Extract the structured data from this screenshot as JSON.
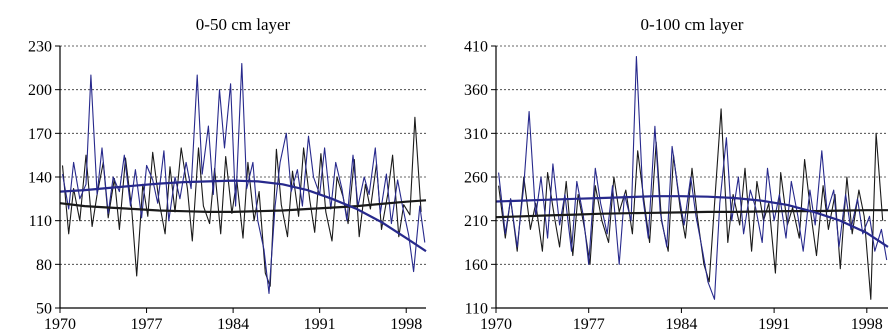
{
  "colors": {
    "series_a": "#1a1a1a",
    "series_b": "#27298c",
    "grid": "#333333",
    "axis": "#000000"
  },
  "chart_data": [
    {
      "type": "line",
      "title": "0-50 cm layer",
      "xlabel": "",
      "ylabel": "",
      "xlim": [
        1970,
        1999.6
      ],
      "ylim": [
        50,
        230
      ],
      "xticks": [
        1970,
        1977,
        1984,
        1991,
        1998
      ],
      "yticks": [
        50,
        80,
        110,
        140,
        170,
        200,
        230
      ],
      "grid": "horizontal-dotted",
      "legend": "none",
      "series": [
        {
          "color": "#1a1a1a",
          "kind": "raw",
          "x": [
            1970.2,
            1970.7,
            1971.1,
            1971.6,
            1972.1,
            1972.6,
            1973.0,
            1973.5,
            1973.9,
            1974.4,
            1974.8,
            1975.3,
            1975.8,
            1976.2,
            1976.7,
            1977.1,
            1977.5,
            1978.0,
            1978.5,
            1978.9,
            1979.3,
            1979.8,
            1980.3,
            1980.7,
            1981.2,
            1981.6,
            1982.1,
            1982.5,
            1983.0,
            1983.4,
            1983.9,
            1984.3,
            1984.8,
            1985.2,
            1985.7,
            1986.1,
            1986.6,
            1987.0,
            1987.5,
            1987.9,
            1988.4,
            1988.8,
            1989.3,
            1989.7,
            1990.2,
            1990.6,
            1991.1,
            1991.5,
            1992.0,
            1992.4,
            1992.9,
            1993.3,
            1993.8,
            1994.2,
            1994.7,
            1995.1,
            1995.6,
            1996.0,
            1996.5,
            1996.9,
            1997.4,
            1997.8,
            1998.3,
            1998.7,
            1999.2
          ],
          "y": [
            148,
            101,
            132,
            110,
            155,
            106,
            128,
            150,
            112,
            139,
            104,
            153,
            118,
            72,
            135,
            113,
            157,
            124,
            101,
            147,
            116,
            160,
            132,
            96,
            160,
            120,
            108,
            146,
            101,
            154,
            115,
            138,
            98,
            150,
            110,
            130,
            74,
            65,
            159,
            121,
            99,
            144,
            113,
            160,
            124,
            102,
            156,
            116,
            96,
            140,
            126,
            108,
            152,
            99,
            135,
            118,
            149,
            104,
            128,
            155,
            99,
            121,
            114,
            181,
            116
          ]
        },
        {
          "color": "#27298c",
          "kind": "raw",
          "x": [
            1970.2,
            1970.7,
            1971.1,
            1971.6,
            1972.1,
            1972.5,
            1973.0,
            1973.4,
            1973.9,
            1974.3,
            1974.8,
            1975.2,
            1975.7,
            1976.1,
            1976.6,
            1977.0,
            1977.5,
            1977.9,
            1978.4,
            1978.8,
            1979.3,
            1979.7,
            1980.2,
            1980.6,
            1981.1,
            1981.5,
            1982.0,
            1982.4,
            1982.9,
            1983.3,
            1983.8,
            1984.2,
            1984.7,
            1985.1,
            1985.6,
            1986.0,
            1986.5,
            1986.9,
            1987.4,
            1987.8,
            1988.3,
            1988.7,
            1989.2,
            1989.6,
            1990.1,
            1990.5,
            1991.0,
            1991.4,
            1991.9,
            1992.3,
            1992.8,
            1993.2,
            1993.7,
            1994.1,
            1994.6,
            1995.0,
            1995.5,
            1995.9,
            1996.4,
            1996.8,
            1997.3,
            1997.7,
            1998.2,
            1998.6,
            1999.1,
            1999.5
          ],
          "y": [
            142,
            118,
            150,
            125,
            135,
            210,
            128,
            160,
            115,
            140,
            130,
            155,
            120,
            145,
            112,
            148,
            138,
            122,
            158,
            110,
            140,
            125,
            150,
            132,
            210,
            142,
            175,
            128,
            200,
            160,
            204,
            120,
            218,
            132,
            150,
            110,
            90,
            60,
            120,
            150,
            170,
            130,
            145,
            120,
            168,
            140,
            128,
            160,
            118,
            150,
            132,
            110,
            155,
            120,
            140,
            128,
            160,
            115,
            142,
            108,
            138,
            120,
            100,
            75,
            120,
            95
          ]
        },
        {
          "color": "#1a1a1a",
          "kind": "trend",
          "x": [
            1970,
            1972,
            1974,
            1976,
            1978,
            1980,
            1982,
            1984,
            1986,
            1988,
            1990,
            1992,
            1994,
            1996,
            1998,
            1999.6
          ],
          "y": [
            122,
            120,
            119,
            118,
            117,
            116.5,
            116,
            116,
            116.5,
            117,
            118,
            119,
            120,
            121.5,
            123,
            124
          ]
        },
        {
          "color": "#27298c",
          "kind": "trend",
          "x": [
            1970,
            1972,
            1974,
            1976,
            1978,
            1980,
            1982,
            1984,
            1986,
            1988,
            1990,
            1992,
            1994,
            1996,
            1998,
            1999.6
          ],
          "y": [
            130,
            131,
            132.5,
            134,
            135.5,
            136.5,
            137,
            137.5,
            137,
            135,
            131,
            125,
            118,
            109,
            98,
            89
          ]
        }
      ]
    },
    {
      "type": "line",
      "title": "0-100 cm layer",
      "xlabel": "",
      "ylabel": "",
      "xlim": [
        1970,
        1999.6
      ],
      "ylim": [
        110,
        410
      ],
      "xticks": [
        1970,
        1977,
        1984,
        1991,
        1998
      ],
      "yticks": [
        110,
        160,
        210,
        260,
        310,
        360,
        410
      ],
      "grid": "horizontal-dotted",
      "legend": "none",
      "series": [
        {
          "color": "#1a1a1a",
          "kind": "raw",
          "x": [
            1970.2,
            1970.7,
            1971.1,
            1971.6,
            1972.1,
            1972.6,
            1973.0,
            1973.5,
            1973.9,
            1974.4,
            1974.8,
            1975.3,
            1975.8,
            1976.2,
            1976.7,
            1977.1,
            1977.5,
            1978.0,
            1978.5,
            1978.9,
            1979.3,
            1979.8,
            1980.3,
            1980.7,
            1981.2,
            1981.6,
            1982.1,
            1982.5,
            1983.0,
            1983.4,
            1983.9,
            1984.3,
            1984.8,
            1985.2,
            1985.7,
            1986.1,
            1986.6,
            1987.0,
            1987.5,
            1987.9,
            1988.4,
            1988.8,
            1989.3,
            1989.7,
            1990.2,
            1990.6,
            1991.1,
            1991.5,
            1992.0,
            1992.4,
            1992.9,
            1993.3,
            1993.8,
            1994.2,
            1994.7,
            1995.1,
            1995.6,
            1996.0,
            1996.5,
            1996.9,
            1997.4,
            1997.8,
            1998.3,
            1998.7,
            1999.2
          ],
          "y": [
            250,
            190,
            235,
            175,
            260,
            200,
            230,
            175,
            265,
            215,
            180,
            255,
            170,
            240,
            200,
            160,
            250,
            210,
            185,
            260,
            220,
            245,
            195,
            290,
            230,
            185,
            300,
            210,
            175,
            285,
            225,
            190,
            270,
            215,
            160,
            140,
            250,
            338,
            185,
            240,
            205,
            270,
            175,
            255,
            210,
            230,
            150,
            265,
            205,
            225,
            190,
            280,
            215,
            170,
            250,
            200,
            240,
            155,
            260,
            195,
            245,
            215,
            120,
            310,
            210
          ]
        },
        {
          "color": "#27298c",
          "kind": "raw",
          "x": [
            1970.2,
            1970.7,
            1971.1,
            1971.6,
            1972.1,
            1972.5,
            1973.0,
            1973.4,
            1973.9,
            1974.3,
            1974.8,
            1975.2,
            1975.7,
            1976.1,
            1976.6,
            1977.0,
            1977.5,
            1977.9,
            1978.4,
            1978.8,
            1979.3,
            1979.7,
            1980.2,
            1980.6,
            1981.1,
            1981.5,
            1982.0,
            1982.4,
            1982.9,
            1983.3,
            1983.8,
            1984.2,
            1984.7,
            1985.1,
            1985.6,
            1986.0,
            1986.5,
            1986.9,
            1987.4,
            1987.8,
            1988.3,
            1988.7,
            1989.2,
            1989.6,
            1990.1,
            1990.5,
            1991.0,
            1991.4,
            1991.9,
            1992.3,
            1992.8,
            1993.2,
            1993.7,
            1994.1,
            1994.6,
            1995.0,
            1995.5,
            1995.9,
            1996.4,
            1996.8,
            1997.3,
            1997.7,
            1998.2,
            1998.6,
            1999.1,
            1999.5
          ],
          "y": [
            265,
            195,
            235,
            180,
            250,
            335,
            215,
            260,
            190,
            275,
            205,
            240,
            175,
            255,
            215,
            160,
            270,
            230,
            195,
            250,
            160,
            240,
            210,
            398,
            235,
            190,
            318,
            220,
            180,
            295,
            240,
            205,
            260,
            215,
            175,
            140,
            120,
            230,
            305,
            210,
            260,
            195,
            245,
            225,
            185,
            270,
            210,
            240,
            190,
            255,
            215,
            175,
            245,
            205,
            290,
            220,
            245,
            180,
            240,
            200,
            235,
            195,
            215,
            175,
            200,
            165
          ]
        },
        {
          "color": "#1a1a1a",
          "kind": "trend",
          "x": [
            1970,
            1972,
            1974,
            1976,
            1978,
            1980,
            1982,
            1984,
            1986,
            1988,
            1990,
            1992,
            1994,
            1996,
            1998,
            1999.6
          ],
          "y": [
            214,
            215,
            216,
            217,
            218,
            218.5,
            219,
            219.5,
            220,
            220,
            220.5,
            221,
            221,
            221.5,
            222,
            222
          ]
        },
        {
          "color": "#27298c",
          "kind": "trend",
          "x": [
            1970,
            1972,
            1974,
            1976,
            1978,
            1980,
            1982,
            1984,
            1986,
            1988,
            1990,
            1992,
            1994,
            1996,
            1998,
            1999.6
          ],
          "y": [
            232,
            233,
            234,
            235,
            236,
            237,
            238,
            238,
            237.5,
            236,
            233,
            228,
            220,
            210,
            196,
            180
          ]
        }
      ]
    }
  ]
}
